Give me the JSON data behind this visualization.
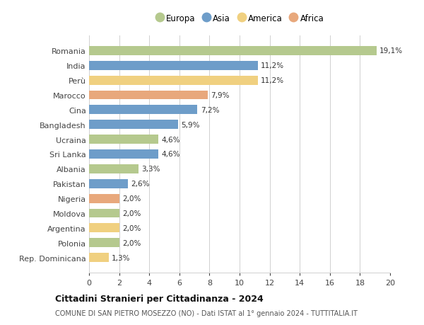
{
  "countries": [
    "Romania",
    "India",
    "Perù",
    "Marocco",
    "Cina",
    "Bangladesh",
    "Ucraina",
    "Sri Lanka",
    "Albania",
    "Pakistan",
    "Nigeria",
    "Moldova",
    "Argentina",
    "Polonia",
    "Rep. Dominicana"
  ],
  "values": [
    19.1,
    11.2,
    11.2,
    7.9,
    7.2,
    5.9,
    4.6,
    4.6,
    3.3,
    2.6,
    2.0,
    2.0,
    2.0,
    2.0,
    1.3
  ],
  "labels": [
    "19,1%",
    "11,2%",
    "11,2%",
    "7,9%",
    "7,2%",
    "5,9%",
    "4,6%",
    "4,6%",
    "3,3%",
    "2,6%",
    "2,0%",
    "2,0%",
    "2,0%",
    "2,0%",
    "1,3%"
  ],
  "continents": [
    "Europa",
    "Asia",
    "America",
    "Africa",
    "Asia",
    "Asia",
    "Europa",
    "Asia",
    "Europa",
    "Asia",
    "Africa",
    "Europa",
    "America",
    "Europa",
    "America"
  ],
  "colors": {
    "Europa": "#b5c98e",
    "Asia": "#6e9dc9",
    "America": "#f0d080",
    "Africa": "#e8a87c"
  },
  "legend_order": [
    "Europa",
    "Asia",
    "America",
    "Africa"
  ],
  "title": "Cittadini Stranieri per Cittadinanza - 2024",
  "subtitle": "COMUNE DI SAN PIETRO MOSEZZO (NO) - Dati ISTAT al 1° gennaio 2024 - TUTTITALIA.IT",
  "xlim": [
    0,
    20
  ],
  "xticks": [
    0,
    2,
    4,
    6,
    8,
    10,
    12,
    14,
    16,
    18,
    20
  ],
  "background_color": "#ffffff",
  "grid_color": "#d0d0d0"
}
